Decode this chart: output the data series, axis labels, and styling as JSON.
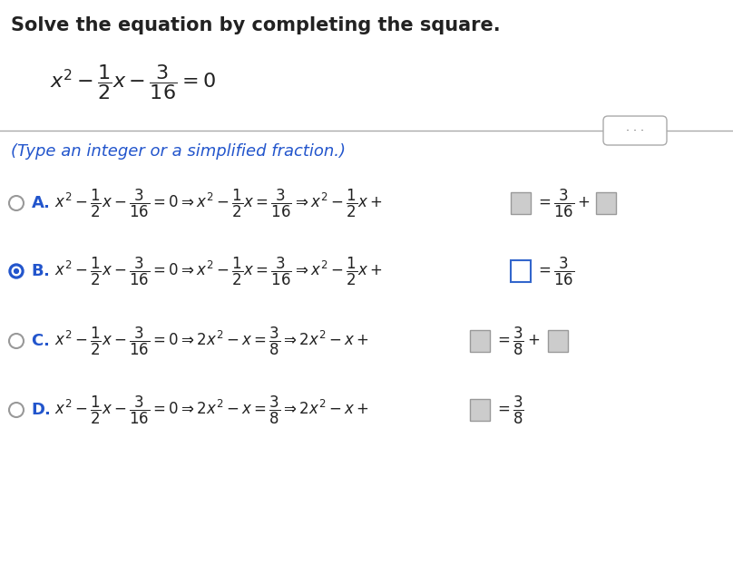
{
  "title": "Solve the equation by completing the square.",
  "bg_color": "#ffffff",
  "text_color": "#222222",
  "blue_color": "#2255cc",
  "radio_color": "#2255cc",
  "gray_box_color": "#cccccc",
  "white_box_color": "#ffffff",
  "blue_box_edge": "#3366cc",
  "gray_box_edge": "#999999",
  "line_color": "#aaaaaa",
  "btn_edge_color": "#aaaaaa",
  "dots_color": "#555555",
  "title_fontsize": 15,
  "subtitle_fontsize": 13,
  "label_fontsize": 13,
  "math_fontsize": 12,
  "main_eq_fontsize": 16,
  "fig_width": 8.08,
  "fig_height": 6.44,
  "fig_dpi": 100
}
